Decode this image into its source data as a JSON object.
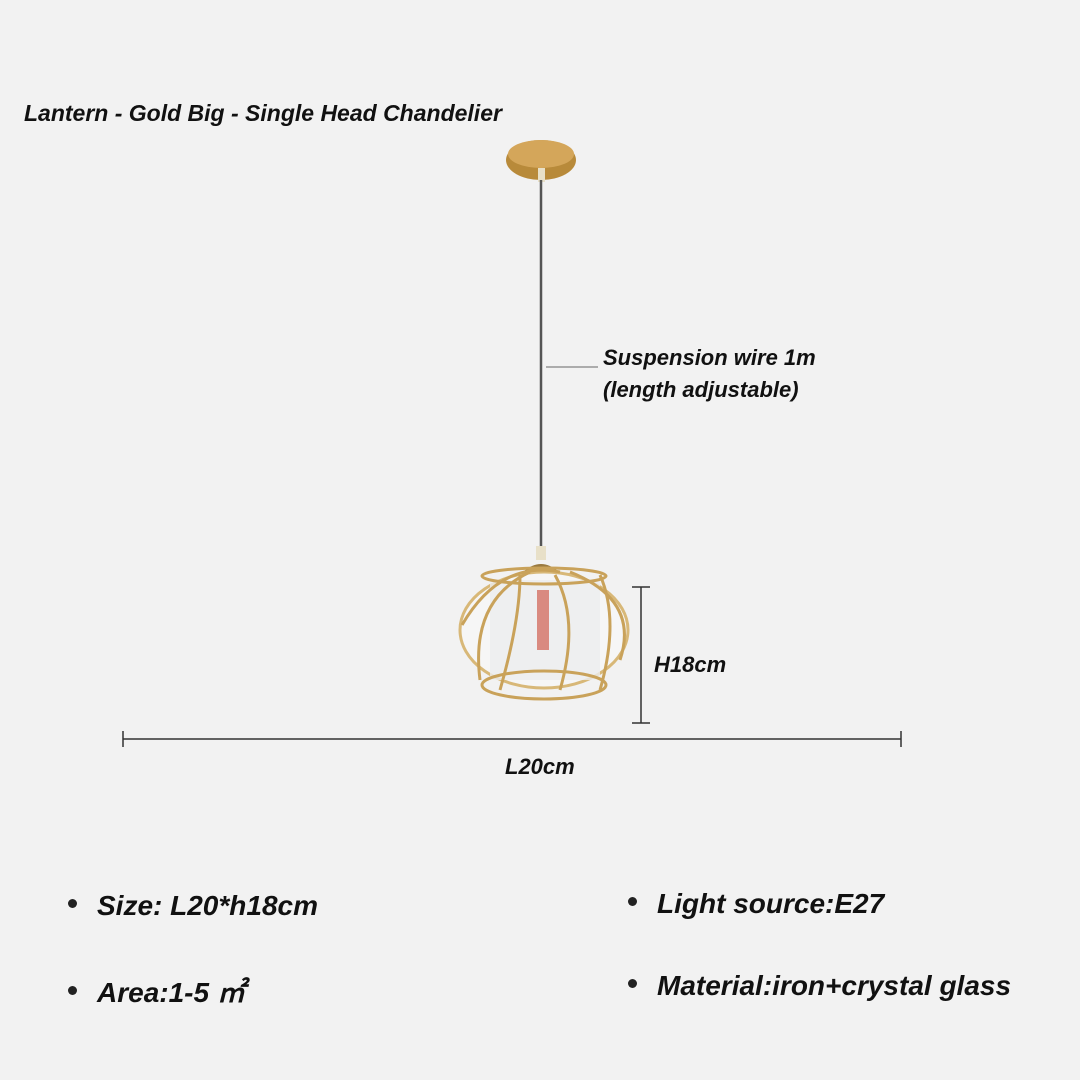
{
  "title": "Lantern - Gold Big - Single Head Chandelier",
  "annotations": {
    "wire_line1": "Suspension wire 1m",
    "wire_line2": "(length adjustable)",
    "height": "H18cm",
    "length": "L20cm"
  },
  "specs": [
    {
      "text": "Size: L20*h18cm"
    },
    {
      "text": "Light source:E27"
    },
    {
      "text": "Area:1-5 ㎡"
    },
    {
      "text": "Material:iron+crystal glass"
    }
  ],
  "colors": {
    "background": "#f2f2f2",
    "gold": "#c9a25a",
    "text": "#111111"
  }
}
